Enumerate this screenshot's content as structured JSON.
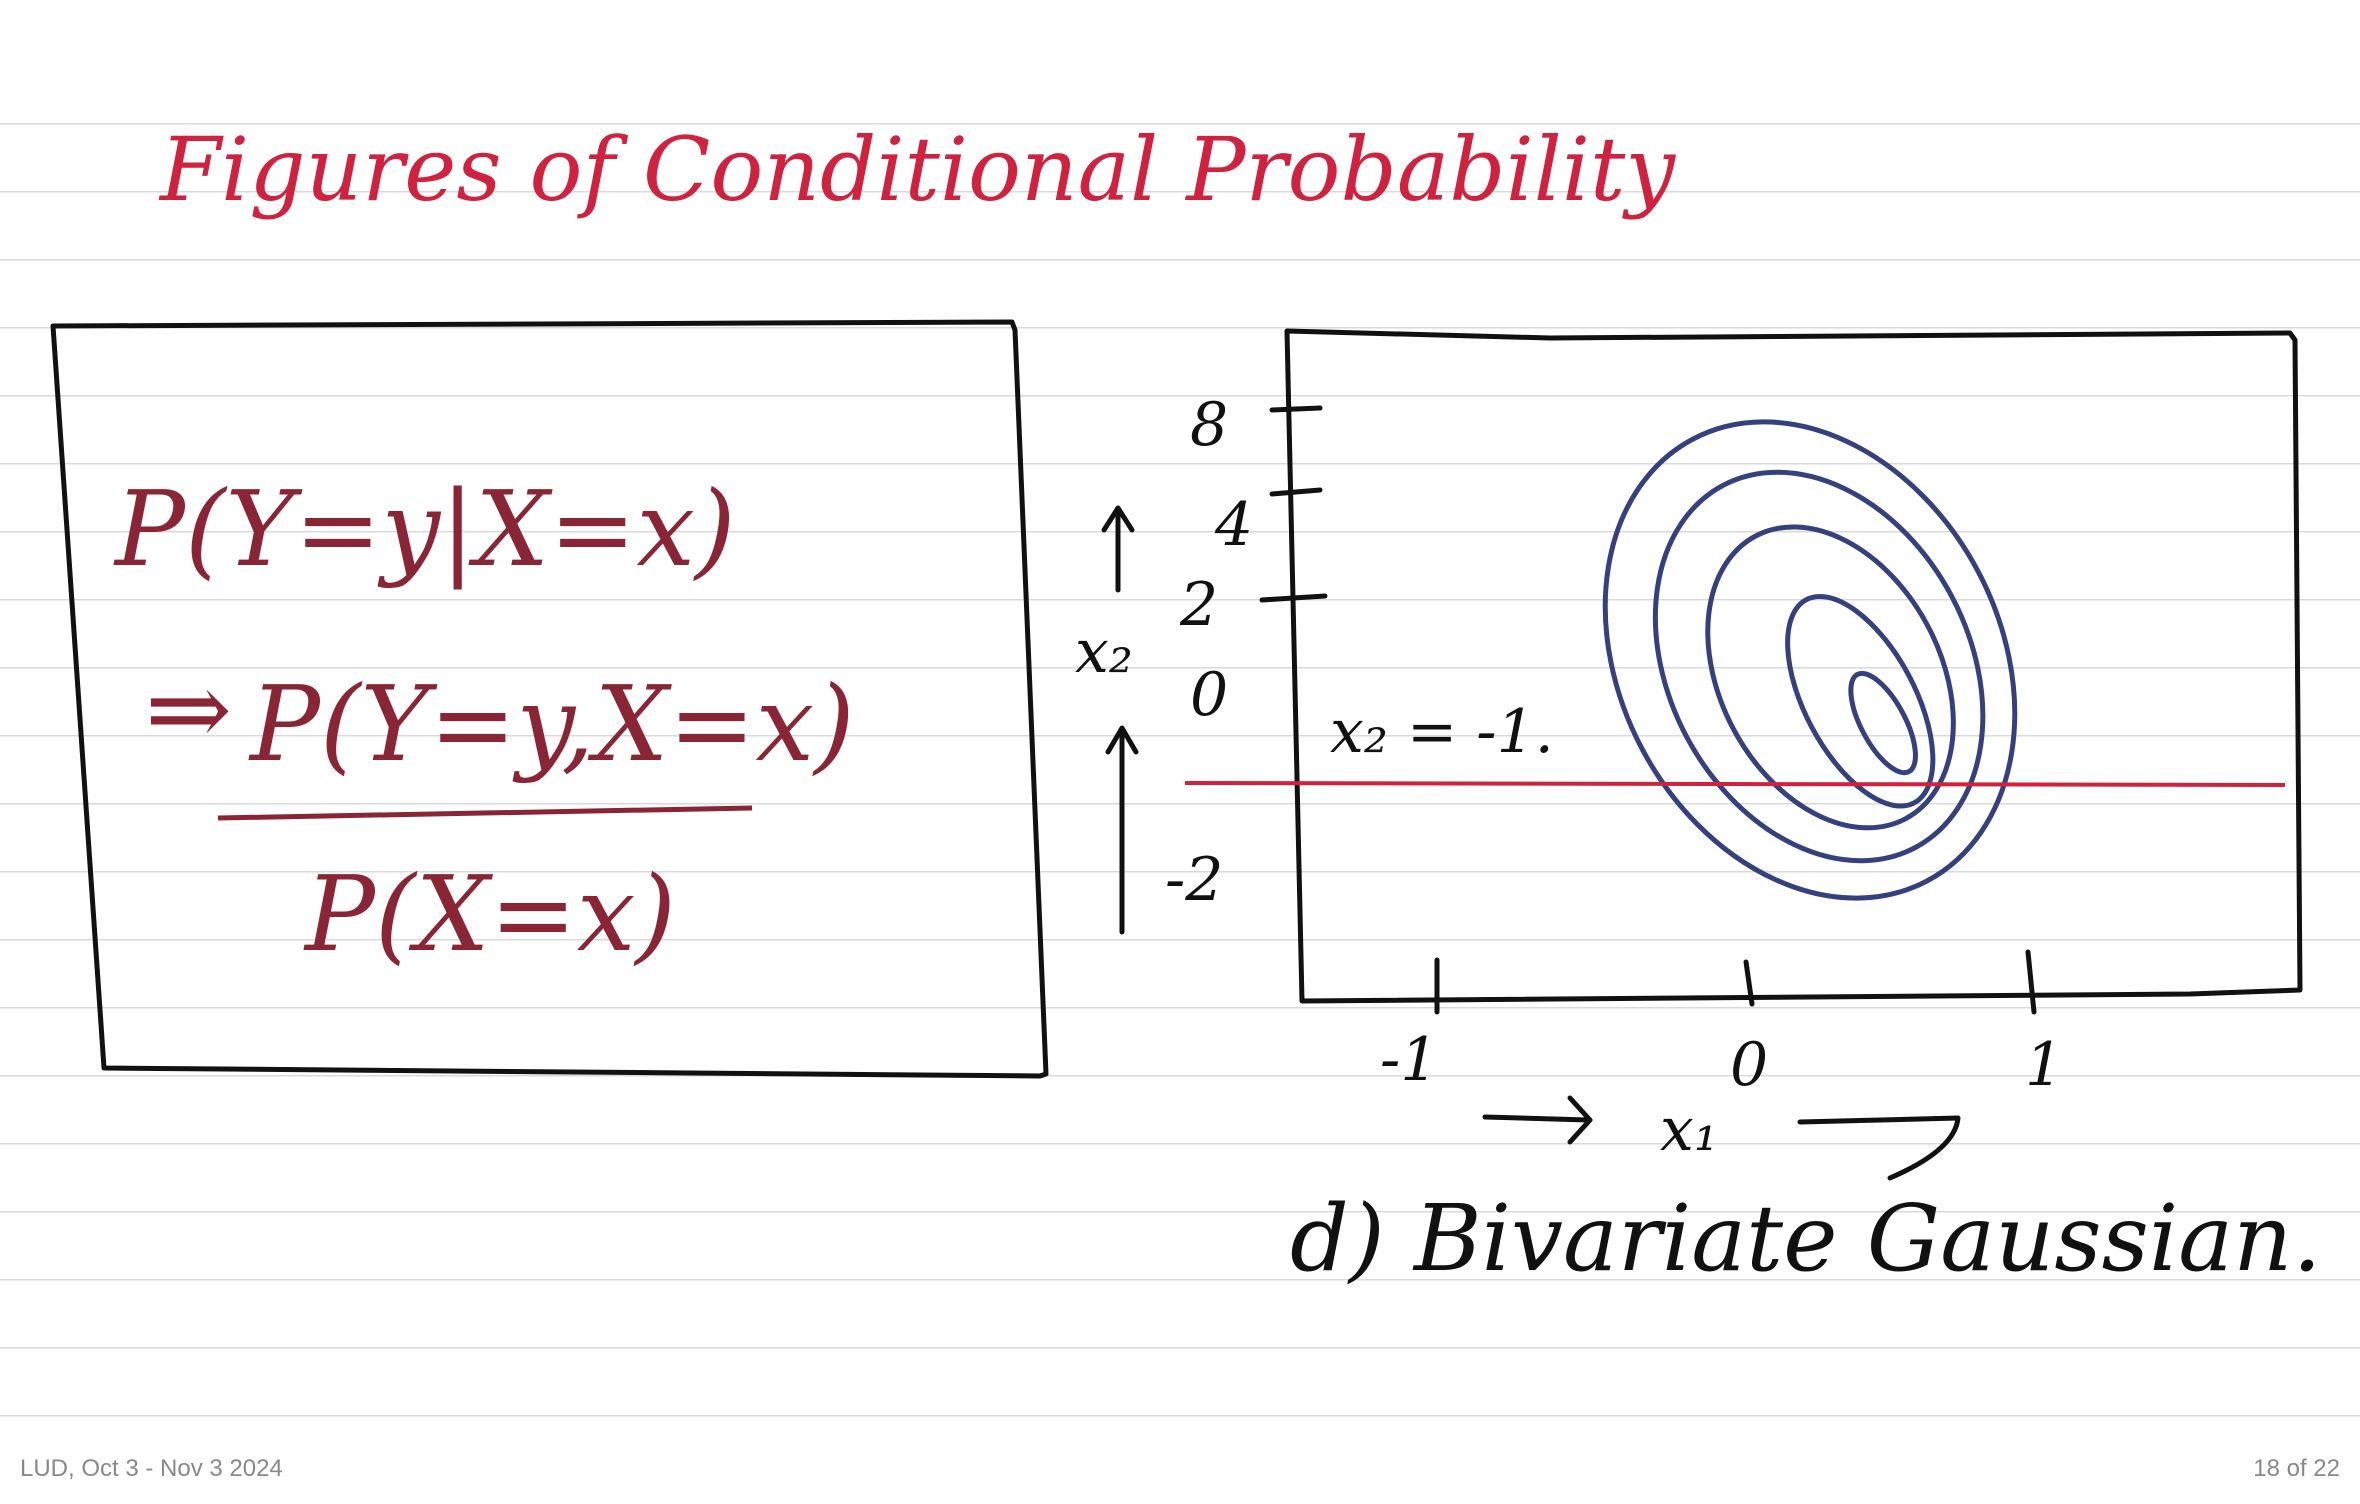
{
  "header": {
    "title": "Figures of Conditional Probability"
  },
  "formula_box": {
    "conditional": "P(Y=y|X=x)",
    "implies": "⇒",
    "numerator": "P(Y=y,X=x)",
    "denominator": "P(X=x)"
  },
  "plot": {
    "y_label": "x₂",
    "y_ticks": [
      "8",
      "4",
      "2",
      "0",
      "-2"
    ],
    "x_label": "x₁",
    "x_ticks": [
      "-1",
      "0",
      "1"
    ],
    "line_label": "x₂ = -1.",
    "caption": "d) Bivariate Gaussian."
  },
  "footer": {
    "left": "LUD, Oct 3 - Nov 3 2024",
    "right": "18 of 22"
  }
}
